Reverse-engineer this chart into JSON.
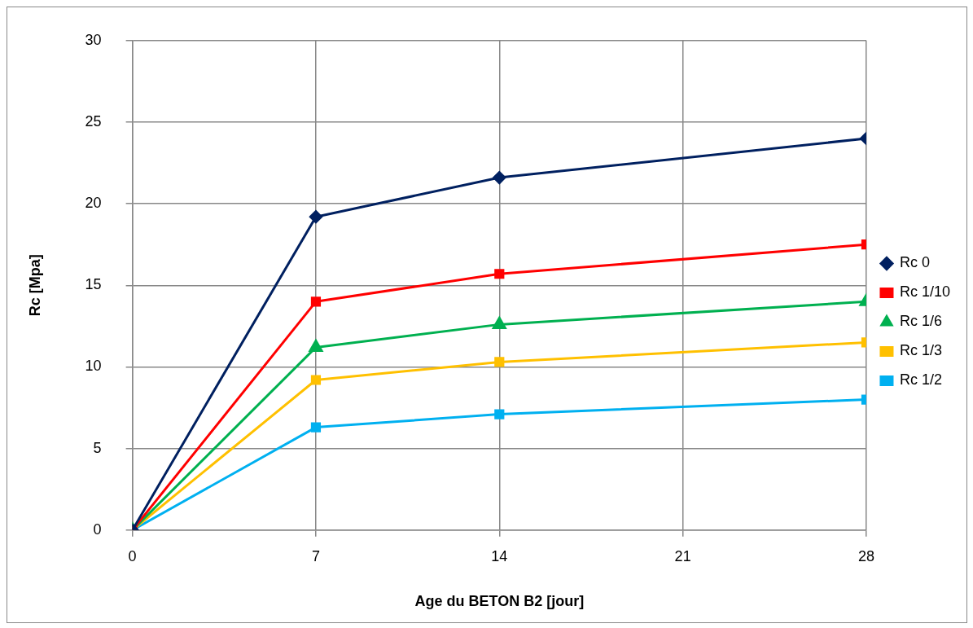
{
  "chart_data": {
    "type": "line",
    "xlabel": "Age du BETON B2 [jour]",
    "ylabel": "Rc [Mpa]",
    "x": [
      0,
      7,
      14,
      28
    ],
    "series": [
      {
        "name": "Rc 0",
        "color": "#002060",
        "marker": "diamond",
        "values": [
          0,
          19.2,
          21.6,
          24.0
        ]
      },
      {
        "name": "Rc 1/10",
        "color": "#ff0000",
        "marker": "square",
        "values": [
          0,
          14.0,
          15.7,
          17.5
        ]
      },
      {
        "name": "Rc 1/6",
        "color": "#00b050",
        "marker": "triangle",
        "values": [
          0,
          11.2,
          12.6,
          14.0
        ]
      },
      {
        "name": "Rc 1/3",
        "color": "#ffc000",
        "marker": "square",
        "values": [
          0,
          9.2,
          10.3,
          11.5
        ]
      },
      {
        "name": "Rc 1/2",
        "color": "#00b0f0",
        "marker": "square",
        "values": [
          0,
          6.3,
          7.1,
          8.0
        ]
      }
    ],
    "xlim": [
      0,
      28
    ],
    "xticks": [
      0,
      7,
      14,
      21,
      28
    ],
    "ylim": [
      0,
      30
    ],
    "yticks": [
      0,
      5,
      10,
      15,
      20,
      25,
      30
    ],
    "grid": true,
    "legend": "right",
    "line_style": "solid"
  }
}
